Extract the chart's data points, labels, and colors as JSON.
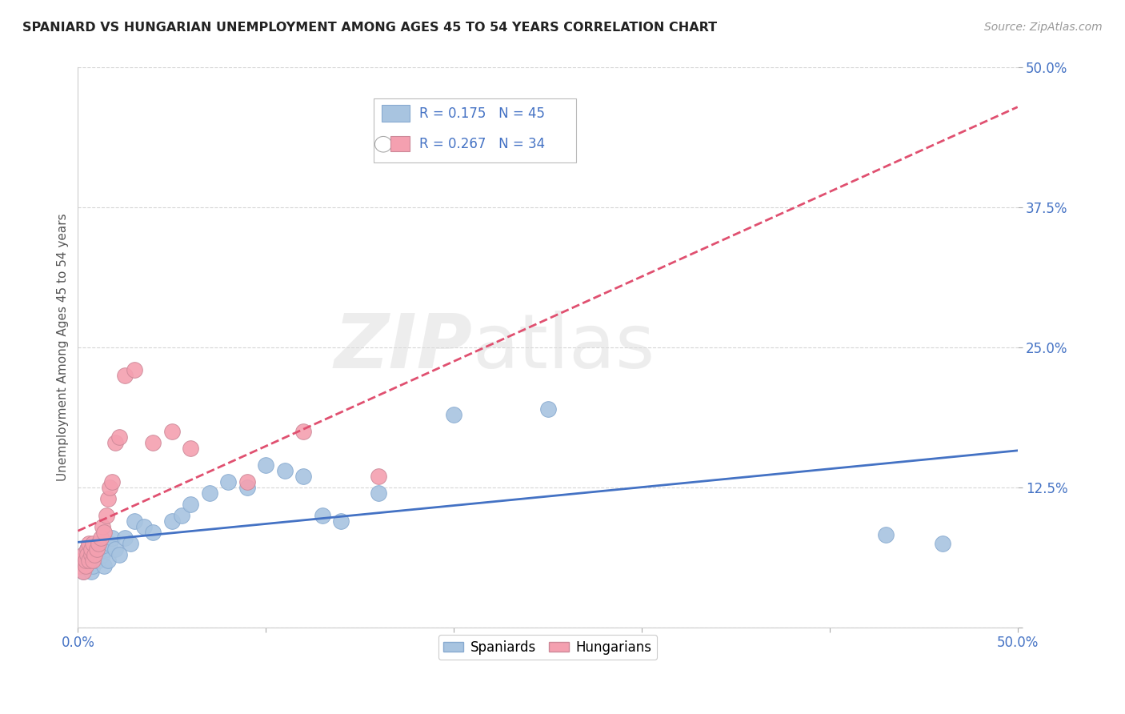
{
  "title": "SPANIARD VS HUNGARIAN UNEMPLOYMENT AMONG AGES 45 TO 54 YEARS CORRELATION CHART",
  "source": "Source: ZipAtlas.com",
  "ylabel": "Unemployment Among Ages 45 to 54 years",
  "xlim": [
    0.0,
    0.5
  ],
  "ylim": [
    0.0,
    0.5
  ],
  "xticks": [
    0.0,
    0.1,
    0.2,
    0.3,
    0.4,
    0.5
  ],
  "yticks": [
    0.0,
    0.125,
    0.25,
    0.375,
    0.5
  ],
  "xticklabels": [
    "0.0%",
    "",
    "",
    "",
    "",
    "50.0%"
  ],
  "yticklabels": [
    "",
    "12.5%",
    "25.0%",
    "37.5%",
    "50.0%"
  ],
  "legend_spaniards": "Spaniards",
  "legend_hungarians": "Hungarians",
  "r_spaniards": 0.175,
  "n_spaniards": 45,
  "r_hungarians": 0.267,
  "n_hungarians": 34,
  "spaniards_color": "#a8c4e0",
  "hungarians_color": "#f4a0b0",
  "spaniards_line_color": "#4472c4",
  "hungarians_line_color": "#e05070",
  "text_color": "#4472c4",
  "background_color": "#ffffff",
  "watermark_zip": "ZIP",
  "watermark_atlas": "atlas",
  "spaniards_x": [
    0.001,
    0.002,
    0.003,
    0.003,
    0.004,
    0.005,
    0.005,
    0.006,
    0.007,
    0.007,
    0.008,
    0.009,
    0.01,
    0.01,
    0.011,
    0.012,
    0.013,
    0.014,
    0.015,
    0.016,
    0.017,
    0.018,
    0.02,
    0.022,
    0.025,
    0.028,
    0.03,
    0.035,
    0.04,
    0.05,
    0.055,
    0.06,
    0.07,
    0.08,
    0.09,
    0.1,
    0.11,
    0.12,
    0.13,
    0.14,
    0.16,
    0.2,
    0.25,
    0.43,
    0.46
  ],
  "spaniards_y": [
    0.055,
    0.06,
    0.05,
    0.065,
    0.06,
    0.055,
    0.07,
    0.06,
    0.065,
    0.05,
    0.055,
    0.06,
    0.065,
    0.07,
    0.06,
    0.075,
    0.065,
    0.055,
    0.07,
    0.06,
    0.075,
    0.08,
    0.07,
    0.065,
    0.08,
    0.075,
    0.095,
    0.09,
    0.085,
    0.095,
    0.1,
    0.11,
    0.12,
    0.13,
    0.125,
    0.145,
    0.14,
    0.135,
    0.1,
    0.095,
    0.12,
    0.19,
    0.195,
    0.083,
    0.075
  ],
  "hungarians_x": [
    0.001,
    0.002,
    0.003,
    0.003,
    0.004,
    0.004,
    0.005,
    0.005,
    0.006,
    0.006,
    0.007,
    0.007,
    0.008,
    0.008,
    0.009,
    0.01,
    0.011,
    0.012,
    0.013,
    0.014,
    0.015,
    0.016,
    0.017,
    0.018,
    0.02,
    0.022,
    0.025,
    0.03,
    0.04,
    0.05,
    0.06,
    0.09,
    0.12,
    0.16
  ],
  "hungarians_y": [
    0.055,
    0.06,
    0.05,
    0.065,
    0.055,
    0.06,
    0.07,
    0.065,
    0.06,
    0.075,
    0.065,
    0.07,
    0.06,
    0.075,
    0.065,
    0.07,
    0.075,
    0.08,
    0.09,
    0.085,
    0.1,
    0.115,
    0.125,
    0.13,
    0.165,
    0.17,
    0.225,
    0.23,
    0.165,
    0.175,
    0.16,
    0.13,
    0.175,
    0.135
  ]
}
